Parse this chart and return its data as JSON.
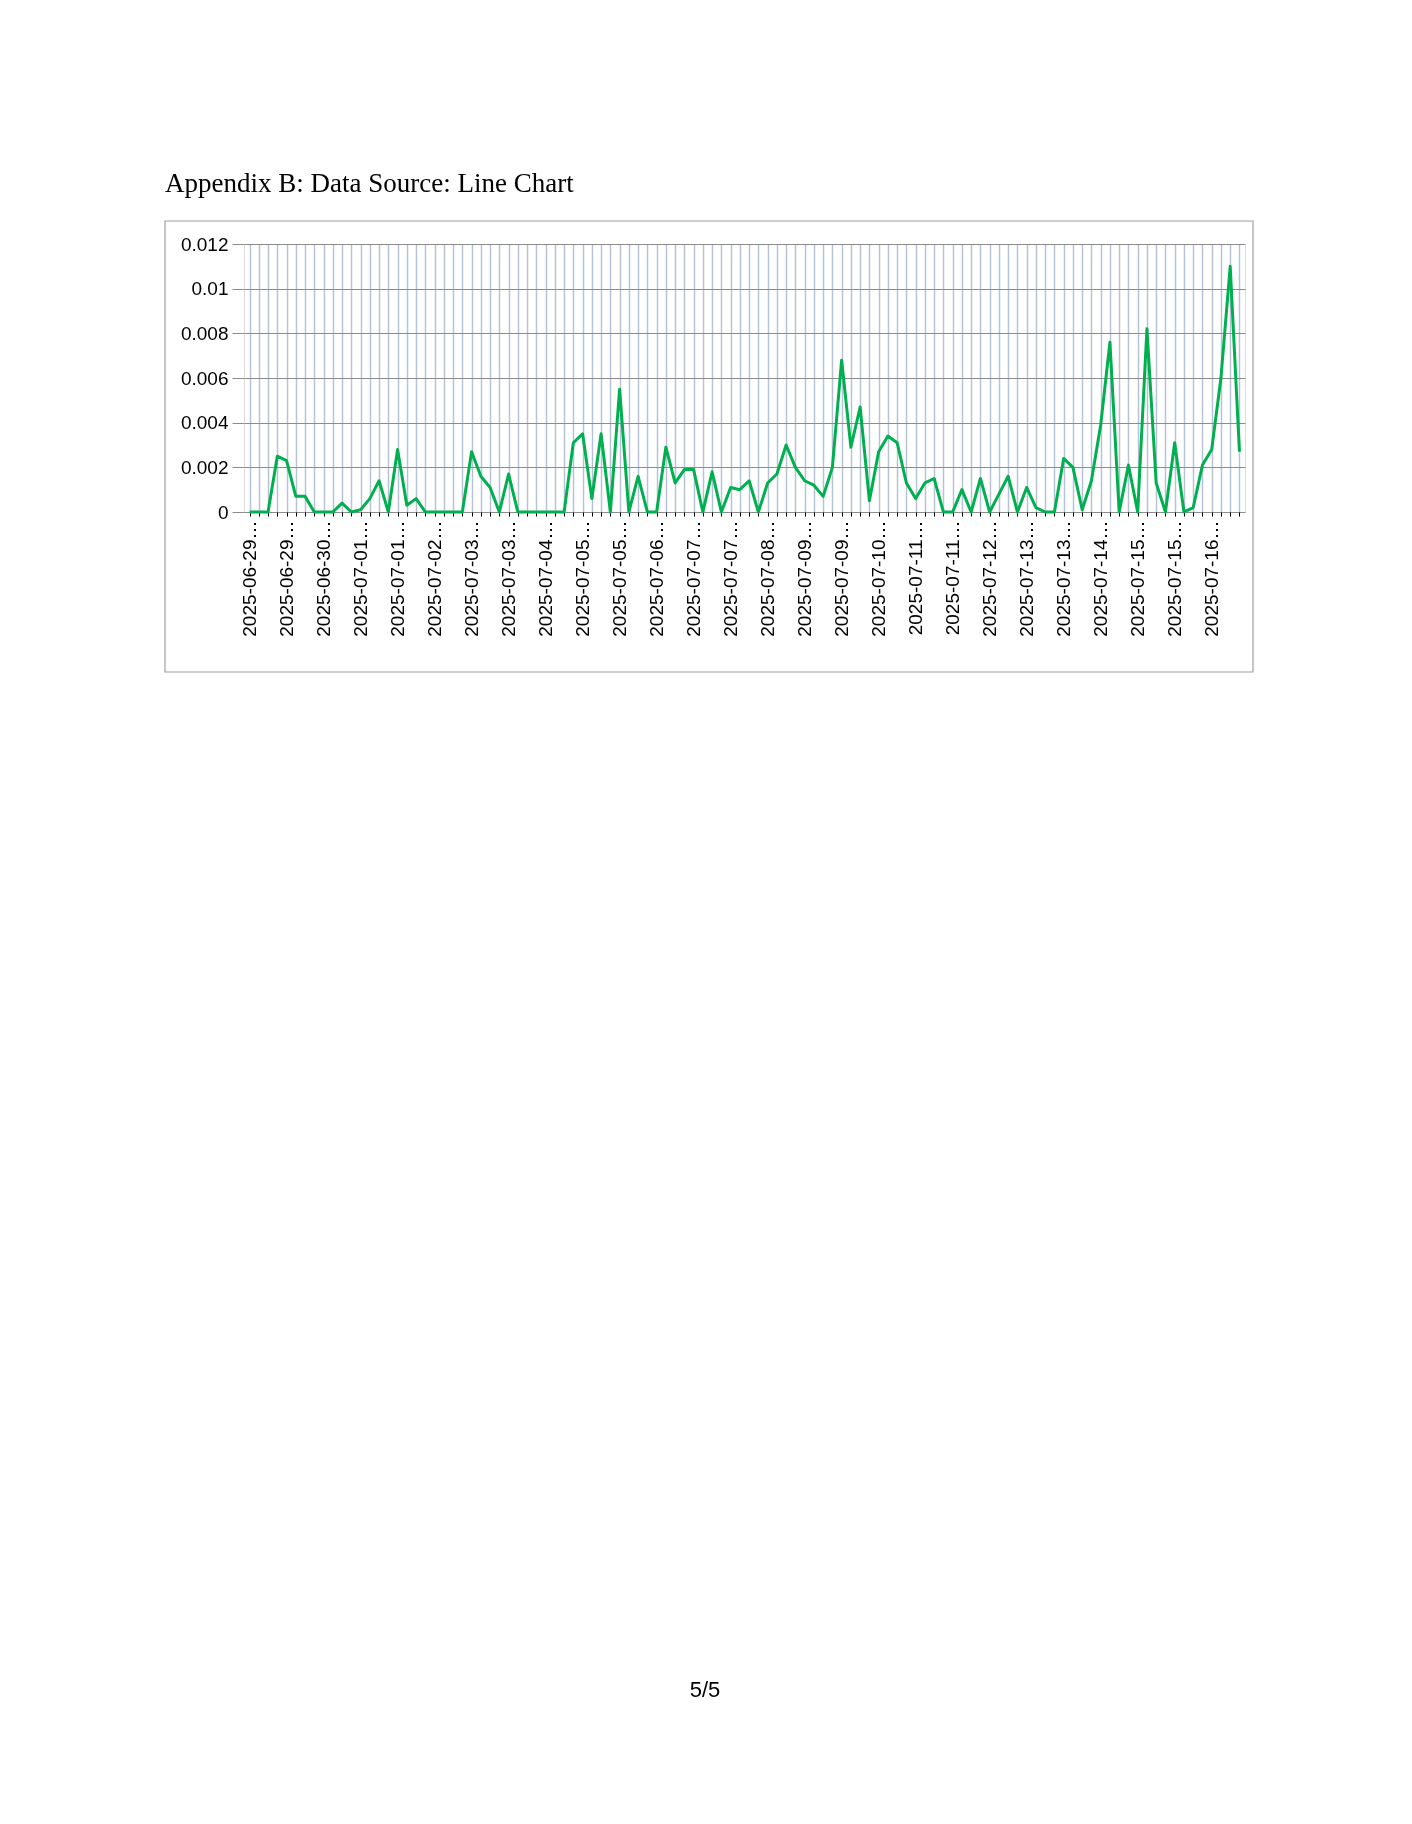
{
  "chart_data": {
    "type": "line",
    "title": "Appendix B: Data Source: Line Chart",
    "categories": [
      "2025-06-29…",
      null,
      null,
      null,
      "2025-06-29…",
      null,
      null,
      null,
      "2025-06-30…",
      null,
      null,
      null,
      "2025-07-01…",
      null,
      null,
      null,
      "2025-07-01…",
      null,
      null,
      null,
      "2025-07-02…",
      null,
      null,
      null,
      "2025-07-03…",
      null,
      null,
      null,
      "2025-07-03…",
      null,
      null,
      null,
      "2025-07-04…",
      null,
      null,
      null,
      "2025-07-05…",
      null,
      null,
      null,
      "2025-07-05…",
      null,
      null,
      null,
      "2025-07-06…",
      null,
      null,
      null,
      "2025-07-07…",
      null,
      null,
      null,
      "2025-07-07…",
      null,
      null,
      null,
      "2025-07-08…",
      null,
      null,
      null,
      "2025-07-09…",
      null,
      null,
      null,
      "2025-07-09…",
      null,
      null,
      null,
      "2025-07-10…",
      null,
      null,
      null,
      "2025-07-11…",
      null,
      null,
      null,
      "2025-07-11…",
      null,
      null,
      null,
      "2025-07-12…",
      null,
      null,
      null,
      "2025-07-13…",
      null,
      null,
      null,
      "2025-07-13…",
      null,
      null,
      null,
      "2025-07-14…",
      null,
      null,
      null,
      "2025-07-15…",
      null,
      null,
      null,
      "2025-07-15…",
      null,
      null,
      null,
      "2025-07-16…",
      null,
      null,
      null
    ],
    "series": [
      {
        "color": "#00b050",
        "values": [
          0,
          0,
          0,
          0.0025,
          0.0023,
          0.0007,
          0.0007,
          0,
          0,
          0,
          0.0004,
          0,
          0.0001,
          0.0006,
          0.0014,
          0,
          0.0028,
          0.0003,
          0.0006,
          0,
          0,
          0,
          0,
          0,
          0.0027,
          0.0016,
          0.0011,
          0,
          0.0017,
          0,
          0,
          0,
          0,
          0,
          0,
          0.0031,
          0.0035,
          0.0006,
          0.0035,
          0,
          0.0055,
          0,
          0.0016,
          0,
          0,
          0.0029,
          0.0013,
          0.0019,
          0.0019,
          0,
          0.0018,
          0,
          0.0011,
          0.001,
          0.0014,
          0,
          0.0013,
          0.0017,
          0.003,
          0.002,
          0.0014,
          0.0012,
          0.0007,
          0.002,
          0.0068,
          0.0029,
          0.0047,
          0.0005,
          0.0027,
          0.0034,
          0.0031,
          0.0013,
          0.0006,
          0.0013,
          0.0015,
          0,
          0,
          0.001,
          0,
          0.0015,
          0,
          0.0008,
          0.0016,
          0,
          0.0011,
          0.0002,
          0,
          0,
          0.0024,
          0.002,
          0.0001,
          0.0014,
          0.0039,
          0.0076,
          0,
          0.0021,
          0,
          0.0082,
          0.0013,
          0,
          0.0031,
          0,
          0.0002,
          0.0021,
          0.0028,
          0.006,
          0.011,
          0.0027
        ]
      }
    ],
    "ylim": [
      0,
      0.012
    ],
    "yticks": [
      0,
      0.002,
      0.004,
      0.006,
      0.008,
      0.01,
      0.012
    ],
    "grid": true,
    "marker": "none",
    "line_style": "solid",
    "annotations": [
      "5/5"
    ]
  }
}
